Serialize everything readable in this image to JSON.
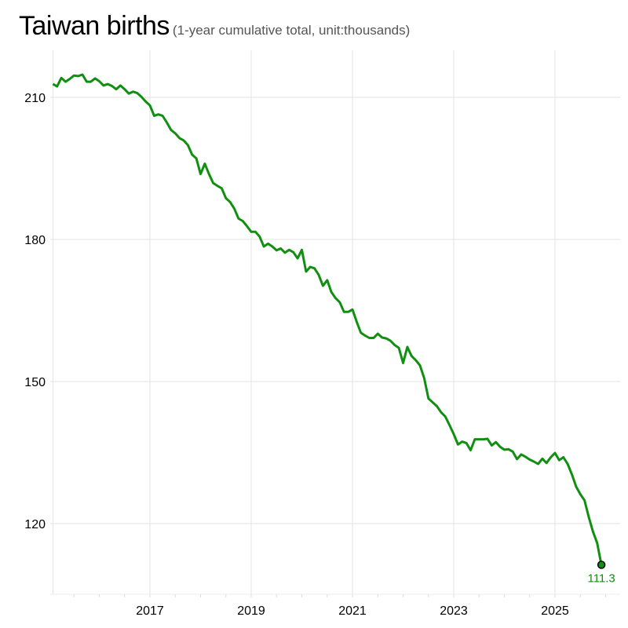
{
  "chart_data": {
    "type": "line",
    "title": "Taiwan births",
    "subtitle": "(1-year cumulative total, unit:thousands)",
    "xlabel": "",
    "ylabel": "",
    "x_start": "2015-01",
    "x_end": "2025-11",
    "x_frequency": "monthly",
    "xlim": [
      2015,
      2026
    ],
    "ylim": [
      109,
      220
    ],
    "x_ticks": [
      "2017",
      "2019",
      "2021",
      "2023",
      "2025"
    ],
    "y_ticks": [
      "120",
      "150",
      "180",
      "210"
    ],
    "grid": true,
    "line_color": "#108f10",
    "end_label": "111.3",
    "values": [
      212.8,
      212.3,
      214.1,
      213.3,
      213.9,
      214.6,
      214.5,
      214.8,
      213.3,
      213.3,
      214.0,
      213.4,
      212.5,
      212.8,
      212.4,
      211.7,
      212.5,
      211.7,
      210.8,
      211.2,
      210.9,
      210.1,
      209.1,
      208.3,
      206.1,
      206.4,
      206.1,
      204.7,
      203.1,
      202.4,
      201.4,
      200.9,
      199.9,
      197.9,
      197.1,
      193.8,
      196.0,
      193.8,
      191.9,
      191.3,
      190.8,
      188.7,
      187.9,
      186.5,
      184.4,
      183.9,
      182.8,
      181.6,
      181.6,
      180.6,
      178.5,
      179.1,
      178.5,
      177.7,
      178.1,
      177.2,
      177.8,
      177.3,
      176.0,
      177.8,
      173.2,
      174.2,
      173.9,
      172.5,
      170.2,
      171.4,
      168.9,
      167.6,
      166.7,
      164.7,
      164.7,
      165.2,
      162.6,
      160.3,
      159.7,
      159.2,
      159.2,
      160.1,
      159.3,
      159.1,
      158.6,
      157.7,
      157.1,
      153.9,
      157.3,
      155.4,
      154.5,
      153.4,
      150.7,
      146.4,
      145.6,
      144.8,
      143.5,
      142.6,
      140.8,
      138.9,
      136.7,
      137.3,
      137.0,
      135.5,
      137.8,
      137.8,
      137.8,
      137.9,
      136.5,
      137.2,
      136.2,
      135.6,
      135.7,
      135.2,
      133.6,
      134.6,
      134.1,
      133.5,
      133.1,
      132.6,
      133.7,
      132.8,
      134.0,
      134.9,
      133.4,
      134.0,
      132.6,
      130.4,
      127.8,
      126.2,
      124.9,
      121.4,
      118.3,
      115.9,
      111.3
    ]
  }
}
